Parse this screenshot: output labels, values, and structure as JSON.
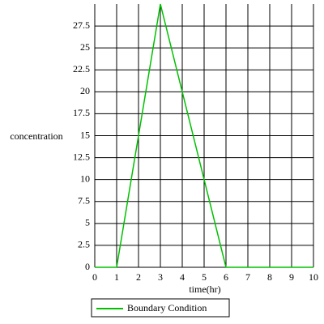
{
  "chart_data": {
    "type": "line",
    "xlabel": "time(hr)",
    "ylabel": "concentration",
    "x": [
      0,
      1,
      3,
      6,
      10
    ],
    "series": [
      {
        "name": "Boundary Condition",
        "color": "#00c000",
        "values": [
          0,
          0,
          30,
          0,
          0
        ]
      }
    ],
    "xlim": [
      0,
      10
    ],
    "xticks": [
      0,
      1,
      2,
      3,
      4,
      5,
      6,
      7,
      8,
      9,
      10
    ],
    "ylim": [
      0,
      30
    ],
    "yticks": [
      0,
      2.5,
      5,
      7.5,
      10,
      12.5,
      15,
      17.5,
      20,
      22.5,
      25,
      27.5
    ],
    "grid": true
  }
}
